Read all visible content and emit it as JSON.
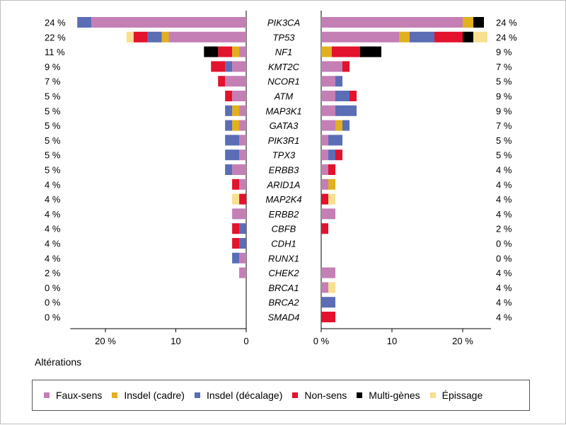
{
  "xaxis_title": "Altérations",
  "legend_items": [
    {
      "key": "faux_sens",
      "label": "Faux-sens",
      "color": "#c47fb5"
    },
    {
      "key": "insdel_cadre",
      "label": "Insdel (cadre)",
      "color": "#e0b01e"
    },
    {
      "key": "insdel_decalage",
      "label": "Insdel (décalage)",
      "color": "#5a6db5"
    },
    {
      "key": "non_sens",
      "label": "Non-sens",
      "color": "#e3122d"
    },
    {
      "key": "multi_genes",
      "label": "Multi-gènes",
      "color": "#000000"
    },
    {
      "key": "epissage",
      "label": "Épissage",
      "color": "#f7e08f"
    }
  ],
  "chart_data": {
    "type": "bar",
    "orientation": "horizontal",
    "genes": [
      "PIK3CA",
      "TP53",
      "NF1",
      "KMT2C",
      "NCOR1",
      "ATM",
      "MAP3K1",
      "GATA3",
      "PIK3R1",
      "TPX3",
      "ERBB3",
      "ARID1A",
      "MAP2K4",
      "ERBB2",
      "CBFB",
      "CDH1",
      "RUNX1",
      "CHEK2",
      "BRCA1",
      "BRCA2",
      "SMAD4"
    ],
    "left_panel": {
      "direction": "reversed",
      "xlim": [
        0,
        25
      ],
      "ticks": [
        20,
        10,
        0
      ],
      "tick_labels": [
        "20 %",
        "10",
        "0"
      ],
      "totals": [
        "24 %",
        "22 %",
        "11 %",
        "9 %",
        "7 %",
        "5 %",
        "5 %",
        "5 %",
        "5 %",
        "5 %",
        "5 %",
        "4 %",
        "4 %",
        "4 %",
        "4 %",
        "4 %",
        "4 %",
        "2 %",
        "0 %",
        "0 %",
        "0 %"
      ],
      "series": [
        {
          "key": "faux_sens",
          "values": [
            22,
            11,
            1,
            2,
            3,
            2,
            1,
            1,
            1,
            1,
            2,
            1,
            0,
            2,
            0,
            0,
            1,
            1,
            0,
            0,
            0
          ]
        },
        {
          "key": "insdel_cadre",
          "values": [
            0,
            1,
            1,
            0,
            0,
            0,
            1,
            1,
            0,
            0,
            0,
            0,
            0,
            0,
            0,
            0,
            0,
            0,
            0,
            0,
            0
          ]
        },
        {
          "key": "insdel_decalage",
          "values": [
            2,
            2,
            0,
            1,
            0,
            0,
            1,
            1,
            2,
            2,
            1,
            0,
            0,
            0,
            1,
            1,
            1,
            0,
            0,
            0,
            0
          ]
        },
        {
          "key": "non_sens",
          "values": [
            0,
            2,
            2,
            2,
            1,
            1,
            0,
            0,
            0,
            0,
            0,
            1,
            1,
            0,
            1,
            1,
            0,
            0,
            0,
            0,
            0
          ]
        },
        {
          "key": "multi_genes",
          "values": [
            0,
            0,
            2,
            0,
            0,
            0,
            0,
            0,
            0,
            0,
            0,
            0,
            0,
            0,
            0,
            0,
            0,
            0,
            0,
            0,
            0
          ]
        },
        {
          "key": "epissage",
          "values": [
            0,
            1,
            0,
            0,
            0,
            0,
            0,
            0,
            0,
            0,
            0,
            0,
            1,
            0,
            0,
            0,
            0,
            0,
            0,
            0,
            0
          ]
        }
      ]
    },
    "right_panel": {
      "direction": "normal",
      "xlim": [
        0,
        24
      ],
      "ticks": [
        0,
        10,
        20
      ],
      "tick_labels": [
        "0 %",
        "10",
        "20 %"
      ],
      "totals": [
        "24 %",
        "24 %",
        "9 %",
        "7 %",
        "5 %",
        "9 %",
        "9 %",
        "7 %",
        "5 %",
        "5 %",
        "4 %",
        "4 %",
        "4 %",
        "4 %",
        "2 %",
        "0 %",
        "0 %",
        "4 %",
        "4 %",
        "4 %",
        "4 %"
      ],
      "series": [
        {
          "key": "faux_sens",
          "values": [
            20,
            11,
            0,
            3,
            2,
            2,
            2,
            2,
            1,
            1,
            1,
            1,
            0,
            2,
            0,
            0,
            0,
            2,
            1,
            0,
            0
          ]
        },
        {
          "key": "insdel_cadre",
          "values": [
            1.5,
            1.5,
            1.5,
            0,
            0,
            0,
            0,
            1,
            0,
            0,
            0,
            1,
            0,
            0,
            0,
            0,
            0,
            0,
            0,
            0,
            0
          ]
        },
        {
          "key": "insdel_decalage",
          "values": [
            0,
            3.5,
            0,
            0,
            1,
            2,
            3,
            1,
            2,
            1,
            0,
            0,
            0,
            0,
            0,
            0,
            0,
            0,
            0,
            2,
            0
          ]
        },
        {
          "key": "non_sens",
          "values": [
            0,
            4,
            4,
            1,
            0,
            1,
            0,
            0,
            0,
            1,
            1,
            0,
            1,
            0,
            1,
            0,
            0,
            0,
            0,
            0,
            2
          ]
        },
        {
          "key": "multi_genes",
          "values": [
            1.5,
            1.5,
            3,
            0,
            0,
            0,
            0,
            0,
            0,
            0,
            0,
            0,
            0,
            0,
            0,
            0,
            0,
            0,
            0,
            0,
            0
          ]
        },
        {
          "key": "epissage",
          "values": [
            0,
            2,
            0,
            0,
            0,
            0,
            0,
            0,
            0,
            0,
            0,
            0,
            1,
            0,
            0,
            0,
            0,
            0,
            1,
            0,
            0
          ]
        }
      ]
    }
  }
}
